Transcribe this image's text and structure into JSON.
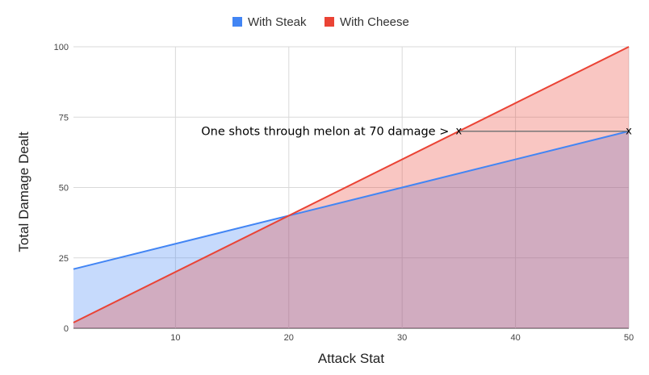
{
  "chart_data": {
    "type": "area",
    "title": "",
    "xlabel": "Attack Stat",
    "ylabel": "Total Damage Dealt",
    "xlim": [
      1,
      50
    ],
    "ylim": [
      0,
      100
    ],
    "x_ticks": [
      "10",
      "20",
      "30",
      "40",
      "50"
    ],
    "y_ticks": [
      "0",
      "25",
      "50",
      "75",
      "100"
    ],
    "grid": true,
    "legend_position": "top",
    "series": [
      {
        "name": "With Steak",
        "color": "#4285f4",
        "fill": "#c9daf8",
        "x": [
          1,
          50
        ],
        "y": [
          21,
          70
        ]
      },
      {
        "name": "With Cheese",
        "color": "#ea4335",
        "fill": "#f4c7c3",
        "x": [
          1,
          50
        ],
        "y": [
          2,
          100
        ]
      }
    ],
    "annotation": {
      "text": "One shots through melon at 70 damage >",
      "marker_label": "x",
      "y": 70,
      "x_from": 35,
      "x_to": 50
    }
  }
}
